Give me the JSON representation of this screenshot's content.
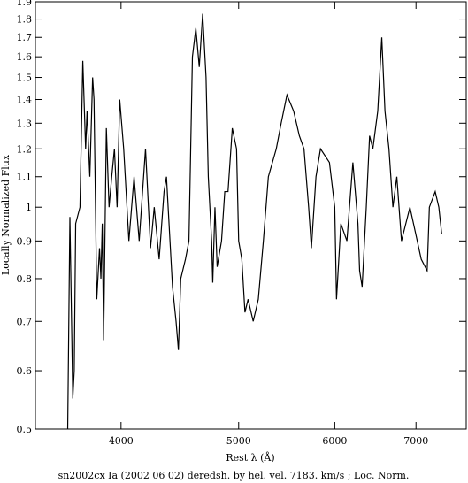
{
  "chart_data": {
    "type": "line",
    "title": "sn2002cx Ia (2002 06 02) deredsh. by hel. vel.  7183. km/s ;  Loc. Norm.",
    "x_label": "Rest λ (Å)",
    "y_label": "Locally Normalized Flux",
    "xlog": true,
    "ylog": true,
    "xlim": [
      3400,
      7700
    ],
    "ylim": [
      0.5,
      1.9
    ],
    "xticks": [
      4000,
      5000,
      6000,
      7000
    ],
    "yticks": [
      0.5,
      0.6,
      0.7,
      0.8,
      0.9,
      1,
      1.1,
      1.2,
      1.3,
      1.4,
      1.5,
      1.6,
      1.7,
      1.8,
      1.9
    ],
    "x": [
      3615,
      3630,
      3650,
      3660,
      3670,
      3700,
      3720,
      3740,
      3750,
      3770,
      3790,
      3800,
      3820,
      3840,
      3850,
      3860,
      3870,
      3890,
      3910,
      3930,
      3950,
      3970,
      3990,
      4020,
      4060,
      4100,
      4140,
      4190,
      4230,
      4260,
      4300,
      4340,
      4360,
      4410,
      4440,
      4460,
      4480,
      4520,
      4550,
      4580,
      4610,
      4640,
      4670,
      4700,
      4720,
      4750,
      4760,
      4780,
      4800,
      4840,
      4870,
      4900,
      4940,
      4980,
      5000,
      5030,
      5060,
      5090,
      5140,
      5190,
      5240,
      5290,
      5370,
      5420,
      5480,
      5550,
      5610,
      5660,
      5710,
      5740,
      5790,
      5840,
      5940,
      6000,
      6020,
      6070,
      6140,
      6210,
      6270,
      6290,
      6320,
      6370,
      6410,
      6450,
      6510,
      6560,
      6600,
      6650,
      6700,
      6750,
      6810,
      6920,
      7070,
      7150,
      7180,
      7260,
      7310,
      7350
    ],
    "series": [
      {
        "name": "sn2002cx",
        "color": "#000000",
        "values": [
          0.5,
          0.97,
          0.55,
          0.6,
          0.95,
          1.0,
          1.58,
          1.2,
          1.35,
          1.1,
          1.5,
          1.4,
          0.75,
          0.88,
          0.8,
          0.95,
          0.66,
          1.28,
          1.0,
          1.1,
          1.2,
          1.0,
          1.4,
          1.2,
          0.9,
          1.1,
          0.9,
          1.2,
          0.88,
          1.0,
          0.85,
          1.05,
          1.1,
          0.78,
          0.7,
          0.64,
          0.8,
          0.85,
          0.9,
          1.6,
          1.75,
          1.55,
          1.83,
          1.5,
          1.1,
          0.9,
          0.79,
          1.0,
          0.83,
          0.9,
          1.05,
          1.05,
          1.28,
          1.2,
          0.9,
          0.85,
          0.72,
          0.75,
          0.7,
          0.75,
          0.9,
          1.1,
          1.2,
          1.3,
          1.42,
          1.35,
          1.25,
          1.2,
          1.0,
          0.88,
          1.1,
          1.2,
          1.15,
          1.0,
          0.75,
          0.95,
          0.9,
          1.15,
          0.95,
          0.82,
          0.78,
          1.0,
          1.25,
          1.2,
          1.35,
          1.7,
          1.35,
          1.2,
          1.0,
          1.1,
          0.9,
          1.0,
          0.85,
          0.82,
          1.0,
          1.05,
          1.0,
          0.92
        ]
      }
    ]
  }
}
